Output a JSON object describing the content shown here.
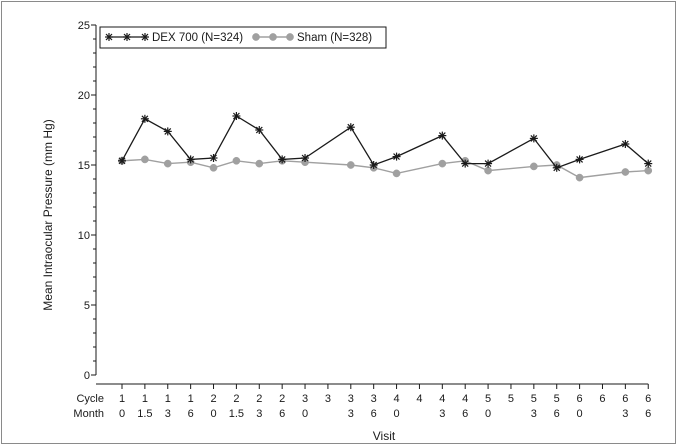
{
  "chart_data": {
    "type": "line",
    "title": "",
    "xlabel": "Visit",
    "ylabel": "Mean Intraocular Pressure (mm Hg)",
    "ylim": [
      0,
      25
    ],
    "yticks": [
      "0",
      "5",
      "10",
      "15",
      "20",
      "25"
    ],
    "grid": false,
    "legend_placement": "top-left",
    "row_labels": {
      "cycle": "Cycle",
      "month": "Month"
    },
    "visits": [
      {
        "cycle": "1",
        "month": "0"
      },
      {
        "cycle": "1",
        "month": "1.5"
      },
      {
        "cycle": "1",
        "month": "3"
      },
      {
        "cycle": "1",
        "month": "6"
      },
      {
        "cycle": "2",
        "month": "0"
      },
      {
        "cycle": "2",
        "month": "1.5"
      },
      {
        "cycle": "2",
        "month": "3"
      },
      {
        "cycle": "2",
        "month": "6"
      },
      {
        "cycle": "3",
        "month": "0"
      },
      {
        "cycle": "3",
        "month": ""
      },
      {
        "cycle": "3",
        "month": "3"
      },
      {
        "cycle": "3",
        "month": "6"
      },
      {
        "cycle": "4",
        "month": "0"
      },
      {
        "cycle": "4",
        "month": ""
      },
      {
        "cycle": "4",
        "month": "3"
      },
      {
        "cycle": "4",
        "month": "6"
      },
      {
        "cycle": "5",
        "month": "0"
      },
      {
        "cycle": "5",
        "month": ""
      },
      {
        "cycle": "5",
        "month": "3"
      },
      {
        "cycle": "5",
        "month": "6"
      },
      {
        "cycle": "6",
        "month": "0"
      },
      {
        "cycle": "6",
        "month": ""
      },
      {
        "cycle": "6",
        "month": "3"
      },
      {
        "cycle": "6",
        "month": "6"
      }
    ],
    "series": [
      {
        "name": "DEX 700 (N=324)",
        "marker": "star",
        "color": "#1a1a1a",
        "values": [
          15.3,
          18.3,
          17.4,
          15.4,
          15.5,
          18.5,
          17.5,
          15.4,
          15.5,
          null,
          17.7,
          15.0,
          15.6,
          null,
          17.1,
          15.1,
          15.1,
          null,
          16.9,
          14.8,
          15.4,
          null,
          16.5,
          15.1
        ]
      },
      {
        "name": "Sham (N=328)",
        "marker": "circle",
        "color": "#a0a0a0",
        "values": [
          15.3,
          15.4,
          15.1,
          15.2,
          14.8,
          15.3,
          15.1,
          15.3,
          15.2,
          null,
          15.0,
          14.8,
          14.4,
          null,
          15.1,
          15.3,
          14.6,
          null,
          14.9,
          15.0,
          14.1,
          null,
          14.5,
          14.6
        ]
      }
    ]
  }
}
